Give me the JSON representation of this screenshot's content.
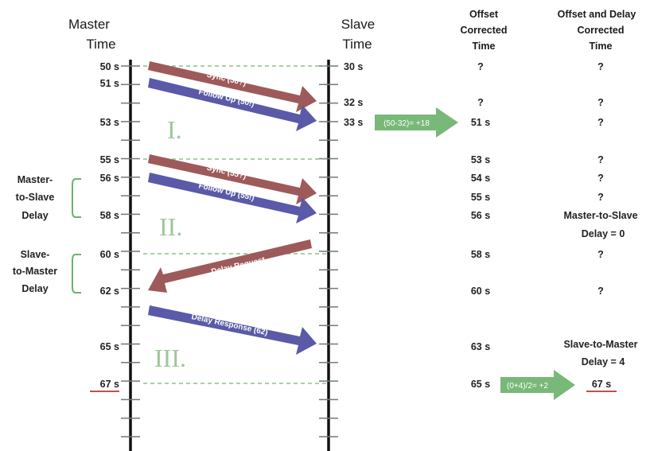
{
  "headers": {
    "master_line1": "Master",
    "master_line2": "Time",
    "slave_line1": "Slave",
    "slave_line2": "Time",
    "offset_line1": "Offset",
    "offset_line2": "Corrected",
    "offset_line3": "Time",
    "delay_line1": "Offset and Delay",
    "delay_line2": "Corrected",
    "delay_line3": "Time"
  },
  "master_times": [
    "50 s",
    "51 s",
    "53 s",
    "55 s",
    "56 s",
    "58 s",
    "60 s",
    "62 s",
    "65 s",
    "67 s"
  ],
  "slave_times": [
    "30 s",
    "32 s",
    "33 s"
  ],
  "offset_values": [
    "?",
    "?",
    "51 s",
    "53 s",
    "54 s",
    "55 s",
    "56 s",
    "58 s",
    "60 s",
    "63 s",
    "65 s"
  ],
  "delay_values": [
    "?",
    "?",
    "?",
    "?",
    "?",
    "?",
    "?",
    "?"
  ],
  "delay_notes": {
    "m2s_line1": "Master-to-Slave",
    "m2s_line2": "Delay = 0",
    "s2m_line1": "Slave-to-Master",
    "s2m_line2": "Delay = 4",
    "final": "67 s"
  },
  "messages": {
    "sync1": "Sync (50?)",
    "follow1": "Follow Up (50!)",
    "sync2": "Sync (55?)",
    "follow2": "Follow Up (55!)",
    "delay_request": "Delay Request",
    "delay_response": "Delay Response (62)"
  },
  "calculations": {
    "offset": "(50-32)= +18",
    "delay": "(0+4)/2= +2"
  },
  "phases": [
    "I.",
    "II.",
    "III."
  ],
  "side_labels": {
    "m2s_line1": "Master-",
    "m2s_line2": "to-Slave",
    "m2s_line3": "Delay",
    "s2m_line1": "Slave-",
    "s2m_line2": "to-Master",
    "s2m_line3": "Delay"
  },
  "colors": {
    "sync_arrow": "#9e5a5a",
    "follow_arrow": "#5a5aa8",
    "calc_arrow": "#78b878",
    "phase": "#9cc79c",
    "dashed": "#8cc08c",
    "underline": "#c0504d"
  }
}
